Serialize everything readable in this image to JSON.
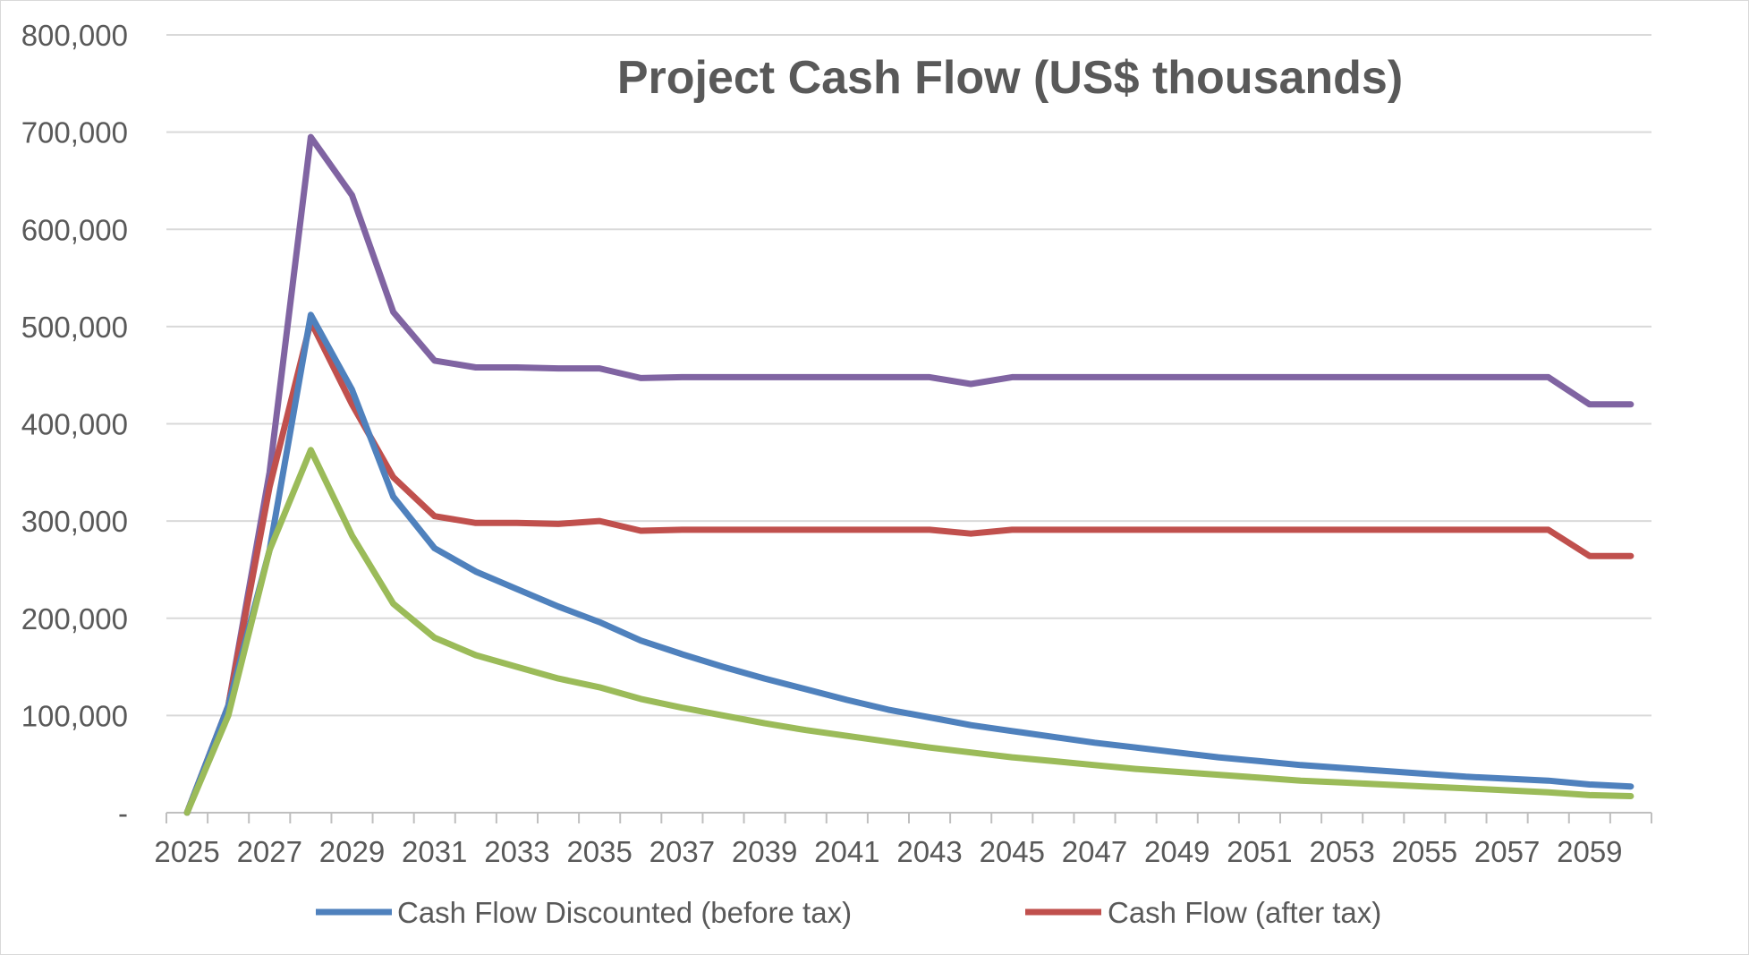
{
  "chart_data": {
    "type": "line",
    "title": "Project Cash Flow (US$ thousands)",
    "xlabel": "",
    "ylabel": "",
    "ylim": [
      0,
      800000
    ],
    "ytick_values": [
      0,
      100000,
      200000,
      300000,
      400000,
      500000,
      600000,
      700000,
      800000
    ],
    "ytick_labels": [
      "-",
      "100,000",
      "200,000",
      "300,000",
      "400,000",
      "500,000",
      "600,000",
      "700,000",
      "800,000"
    ],
    "xtick_labels": [
      "2025",
      "2027",
      "2029",
      "2031",
      "2033",
      "2035",
      "2037",
      "2039",
      "2041",
      "2043",
      "2045",
      "2047",
      "2049",
      "2051",
      "2053",
      "2055",
      "2057",
      "2059"
    ],
    "x": [
      2025,
      2026,
      2027,
      2028,
      2029,
      2030,
      2031,
      2032,
      2033,
      2034,
      2035,
      2036,
      2037,
      2038,
      2039,
      2040,
      2041,
      2042,
      2043,
      2044,
      2045,
      2046,
      2047,
      2048,
      2049,
      2050,
      2051,
      2052,
      2053,
      2054,
      2055,
      2056,
      2057,
      2058,
      2059,
      2060
    ],
    "grid": true,
    "legend_position": "bottom",
    "series": [
      {
        "name": "",
        "color": "#8064a2",
        "values": [
          0,
          110000,
          350000,
          695000,
          635000,
          515000,
          465000,
          458000,
          458000,
          457000,
          457000,
          447000,
          448000,
          448000,
          448000,
          448000,
          448000,
          448000,
          448000,
          441000,
          448000,
          448000,
          448000,
          448000,
          448000,
          448000,
          448000,
          448000,
          448000,
          448000,
          448000,
          448000,
          448000,
          448000,
          420000,
          420000
        ]
      },
      {
        "name": "Cash Flow (after tax)",
        "color": "#c0504d",
        "values": [
          0,
          110000,
          335000,
          505000,
          420000,
          345000,
          305000,
          298000,
          298000,
          297000,
          300000,
          290000,
          291000,
          291000,
          291000,
          291000,
          291000,
          291000,
          291000,
          287000,
          291000,
          291000,
          291000,
          291000,
          291000,
          291000,
          291000,
          291000,
          291000,
          291000,
          291000,
          291000,
          291000,
          291000,
          264000,
          264000
        ]
      },
      {
        "name": "Cash Flow Discounted (before tax)",
        "color": "#4f81bd",
        "values": [
          0,
          110000,
          270000,
          512000,
          435000,
          325000,
          272000,
          248000,
          230000,
          212000,
          196000,
          177000,
          163000,
          150000,
          138000,
          127000,
          116000,
          106000,
          98000,
          90000,
          84000,
          78000,
          72000,
          67000,
          62000,
          57000,
          53000,
          49000,
          46000,
          43000,
          40000,
          37000,
          35000,
          33000,
          29000,
          27000
        ]
      },
      {
        "name": "",
        "color": "#9bbb59",
        "values": [
          0,
          100000,
          270000,
          373000,
          285000,
          215000,
          180000,
          162000,
          150000,
          138000,
          129000,
          117000,
          108000,
          100000,
          92000,
          85000,
          79000,
          73000,
          67000,
          62000,
          57000,
          53000,
          49000,
          45000,
          42000,
          39000,
          36000,
          33000,
          31000,
          29000,
          27000,
          25000,
          23000,
          21000,
          18000,
          17000
        ]
      }
    ],
    "legend_entries": [
      {
        "label": "Cash Flow Discounted (before tax)",
        "color": "#4f81bd"
      },
      {
        "label": "Cash Flow (after tax)",
        "color": "#c0504d"
      }
    ]
  }
}
